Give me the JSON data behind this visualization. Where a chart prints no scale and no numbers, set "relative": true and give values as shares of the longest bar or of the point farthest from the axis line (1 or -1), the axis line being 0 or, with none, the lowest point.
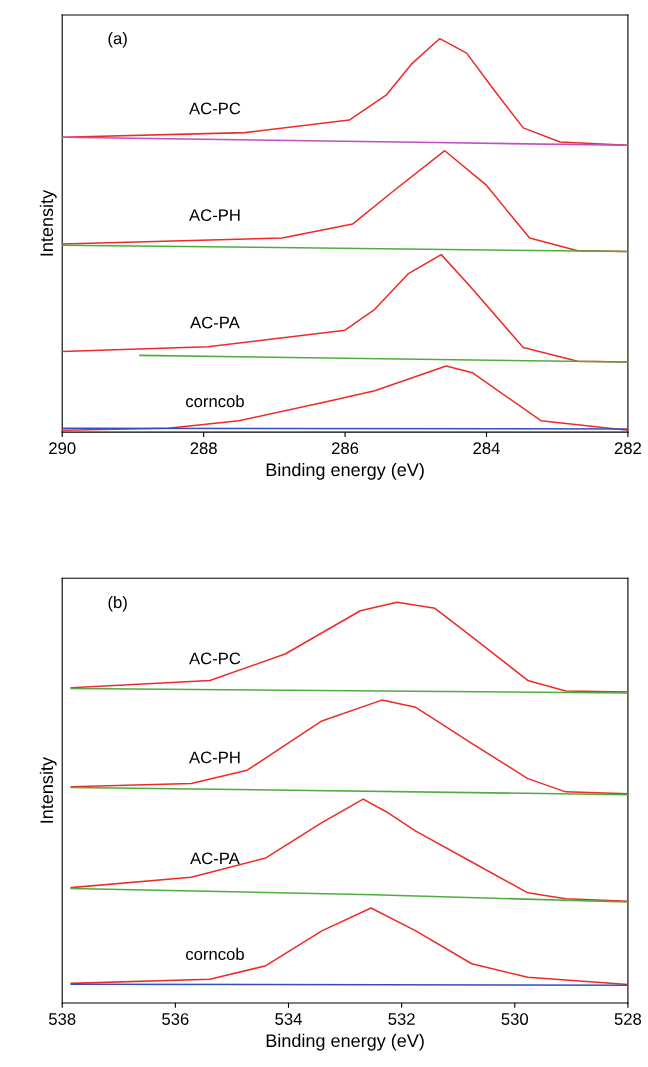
{
  "chart_data": [
    {
      "type": "line",
      "relative": true,
      "xlabel": "Binding energy (eV)",
      "ylabel": "Intensity",
      "annotations": [
        "(a)"
      ],
      "xlim": [
        290,
        282
      ],
      "xticks": [
        290,
        288,
        286,
        284,
        282
      ],
      "tick_labels": "x",
      "legend": false,
      "grid": false,
      "series": [
        {
          "name": "AC-PC",
          "color": "#ee2a2a",
          "x": [
            290,
            287.41,
            285.94,
            285.42,
            285.05,
            284.66,
            284.28,
            283.91,
            283.48,
            282.96,
            282.0
          ],
          "values": [
            0.749,
            0.761,
            0.793,
            0.856,
            0.937,
            1.0,
            0.963,
            0.873,
            0.773,
            0.737,
            0.729
          ]
        },
        {
          "color": "#c050c0",
          "x": [
            290,
            284.5,
            282
          ],
          "values": [
            0.749,
            0.735,
            0.729
          ]
        },
        {
          "name": "AC-PH",
          "color": "#ee2a2a",
          "x": [
            290,
            286.89,
            285.89,
            285.32,
            284.59,
            284.01,
            283.39,
            282.71,
            282.0
          ],
          "values": [
            0.478,
            0.493,
            0.529,
            0.612,
            0.715,
            0.629,
            0.493,
            0.461,
            0.459
          ]
        },
        {
          "color": "#4caf3c",
          "x": [
            290,
            282
          ],
          "values": [
            0.475,
            0.459
          ]
        },
        {
          "name": "AC-PA",
          "color": "#ee2a2a",
          "x": [
            290,
            287.94,
            286.0,
            285.58,
            285.11,
            284.64,
            284.22,
            283.48,
            282.71,
            282.0
          ],
          "values": [
            0.205,
            0.217,
            0.259,
            0.312,
            0.402,
            0.451,
            0.368,
            0.215,
            0.18,
            0.178
          ]
        },
        {
          "color": "#4caf3c",
          "x": [
            288.9,
            282
          ],
          "values": [
            0.195,
            0.178
          ]
        },
        {
          "name": "corncob",
          "color": "#ee2a2a",
          "x": [
            290,
            288.5,
            287.5,
            286.25,
            285.58,
            284.57,
            284.2,
            283.23,
            282.0
          ],
          "values": [
            0.005,
            0.01,
            0.029,
            0.078,
            0.105,
            0.168,
            0.151,
            0.029,
            0.005
          ]
        },
        {
          "color": "#3050c0",
          "x": [
            290,
            282
          ],
          "values": [
            0.01,
            0.008
          ]
        }
      ]
    },
    {
      "type": "line",
      "relative": true,
      "xlabel": "Binding energy (eV)",
      "ylabel": "Intensity",
      "annotations": [
        "(b)"
      ],
      "xlim": [
        538,
        528
      ],
      "xticks": [
        538,
        536,
        534,
        532,
        530,
        528
      ],
      "tick_labels": "x",
      "legend": false,
      "grid": false,
      "series": [
        {
          "name": "AC-PC",
          "color": "#ee2a2a",
          "x": [
            537.84,
            535.39,
            534.06,
            532.73,
            532.08,
            531.41,
            530.63,
            529.77,
            529.1,
            528.0
          ],
          "values": [
            0.787,
            0.805,
            0.871,
            0.979,
            1.0,
            0.985,
            0.9,
            0.805,
            0.779,
            0.776
          ]
        },
        {
          "color": "#4caf3c",
          "x": [
            537.84,
            528
          ],
          "values": [
            0.785,
            0.774
          ]
        },
        {
          "name": "AC-PH",
          "color": "#ee2a2a",
          "x": [
            537.84,
            535.72,
            534.73,
            533.41,
            532.35,
            531.75,
            530.76,
            529.77,
            529.1,
            528.0
          ],
          "values": [
            0.54,
            0.548,
            0.581,
            0.704,
            0.756,
            0.738,
            0.648,
            0.56,
            0.527,
            0.522
          ]
        },
        {
          "color": "#4caf3c",
          "x": [
            537.84,
            528
          ],
          "values": [
            0.538,
            0.52
          ]
        },
        {
          "name": "AC-PA",
          "color": "#ee2a2a",
          "x": [
            537.84,
            535.72,
            534.4,
            533.41,
            532.68,
            532.28,
            531.75,
            530.76,
            529.77,
            529.1,
            528.0
          ],
          "values": [
            0.288,
            0.314,
            0.362,
            0.45,
            0.509,
            0.478,
            0.429,
            0.352,
            0.275,
            0.26,
            0.254
          ]
        },
        {
          "color": "#4caf3c",
          "x": [
            537.84,
            532.5,
            528
          ],
          "values": [
            0.286,
            0.27,
            0.252
          ]
        },
        {
          "name": "corncob",
          "color": "#ee2a2a",
          "x": [
            537.84,
            535.39,
            534.4,
            533.41,
            532.54,
            531.75,
            530.76,
            529.77,
            528.0
          ],
          "values": [
            0.049,
            0.059,
            0.093,
            0.18,
            0.237,
            0.18,
            0.098,
            0.064,
            0.046
          ]
        },
        {
          "color": "#3050c0",
          "x": [
            537.84,
            528
          ],
          "values": [
            0.047,
            0.044
          ]
        }
      ]
    }
  ]
}
